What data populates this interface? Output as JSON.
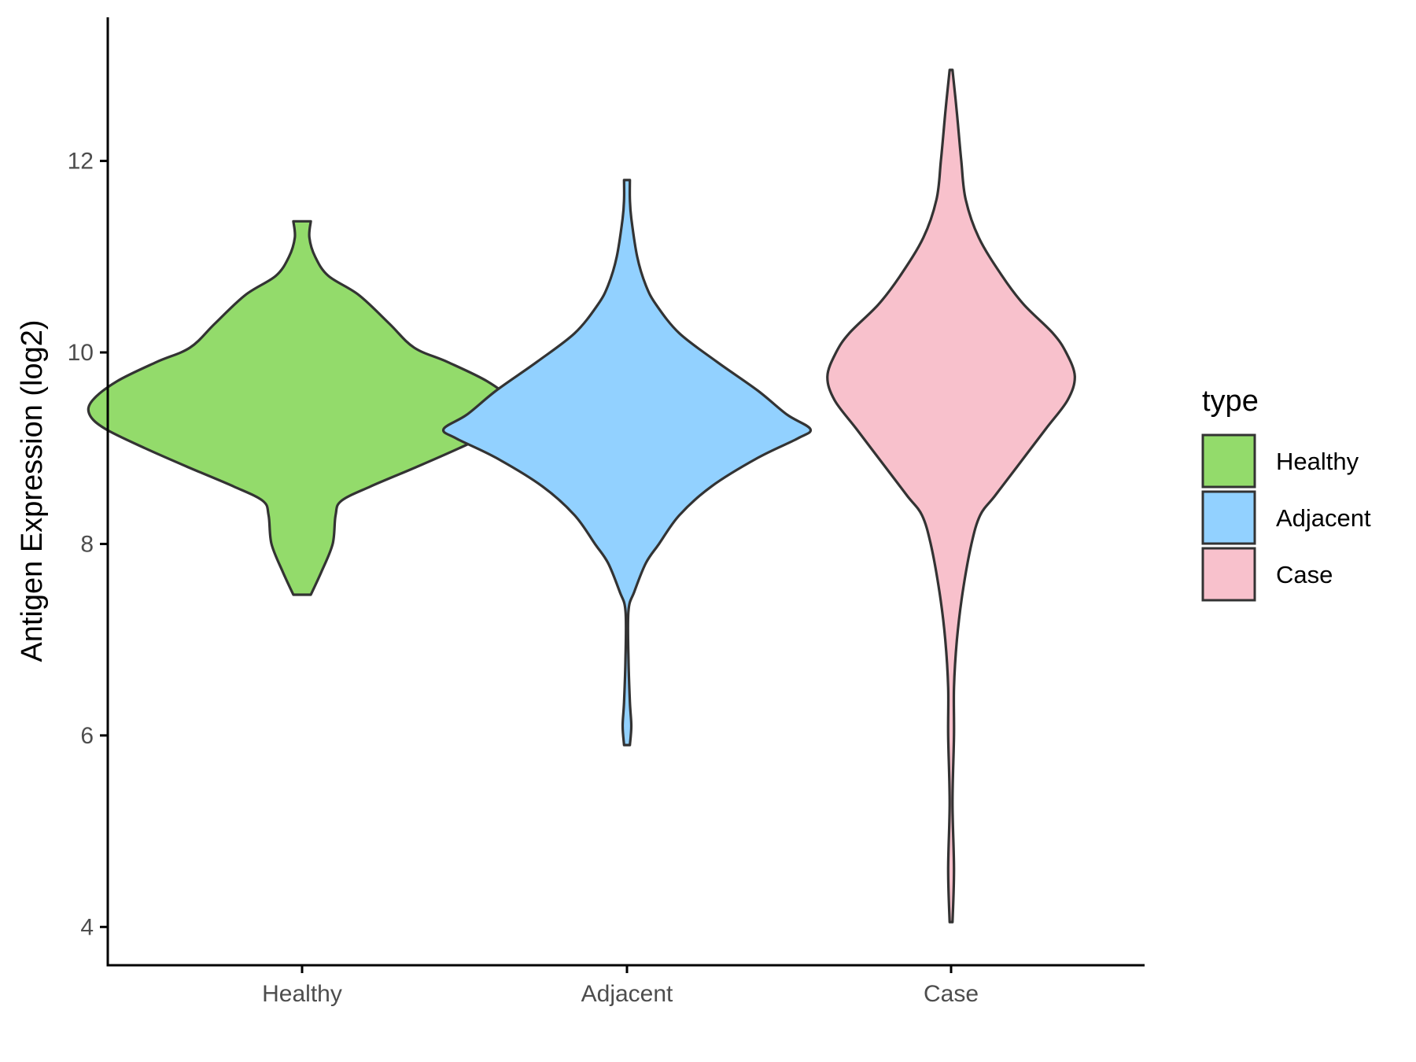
{
  "chart_data": {
    "type": "violin",
    "title": "",
    "xlabel": "",
    "ylabel": "Antigen Expression (log2)",
    "ylim": [
      3.6,
      13.5
    ],
    "yticks": [
      4,
      6,
      8,
      10,
      12
    ],
    "categories": [
      "Healthy",
      "Adjacent",
      "Case"
    ],
    "series": [
      {
        "name": "Healthy",
        "color": "#93DB6B",
        "min": 7.47,
        "max": 11.37,
        "profile": [
          [
            7.47,
            0.06
          ],
          [
            7.7,
            0.13
          ],
          [
            8.0,
            0.21
          ],
          [
            8.3,
            0.23
          ],
          [
            8.45,
            0.27
          ],
          [
            8.6,
            0.47
          ],
          [
            8.8,
            0.78
          ],
          [
            9.0,
            1.08
          ],
          [
            9.2,
            1.35
          ],
          [
            9.35,
            1.46
          ],
          [
            9.5,
            1.44
          ],
          [
            9.7,
            1.27
          ],
          [
            9.9,
            1.0
          ],
          [
            10.05,
            0.77
          ],
          [
            10.3,
            0.6
          ],
          [
            10.6,
            0.39
          ],
          [
            10.8,
            0.18
          ],
          [
            11.0,
            0.09
          ],
          [
            11.2,
            0.05
          ],
          [
            11.37,
            0.06
          ]
        ]
      },
      {
        "name": "Adjacent",
        "color": "#92D1FF",
        "min": 5.9,
        "max": 11.8,
        "profile": [
          [
            5.9,
            0.02
          ],
          [
            6.1,
            0.03
          ],
          [
            6.35,
            0.02
          ],
          [
            6.8,
            0.01
          ],
          [
            7.3,
            0.01
          ],
          [
            7.5,
            0.05
          ],
          [
            7.8,
            0.13
          ],
          [
            8.0,
            0.22
          ],
          [
            8.3,
            0.36
          ],
          [
            8.6,
            0.58
          ],
          [
            8.9,
            0.9
          ],
          [
            9.1,
            1.17
          ],
          [
            9.2,
            1.26
          ],
          [
            9.35,
            1.1
          ],
          [
            9.6,
            0.9
          ],
          [
            9.9,
            0.62
          ],
          [
            10.2,
            0.36
          ],
          [
            10.5,
            0.2
          ],
          [
            10.7,
            0.13
          ],
          [
            11.0,
            0.07
          ],
          [
            11.4,
            0.03
          ],
          [
            11.6,
            0.02
          ],
          [
            11.8,
            0.02
          ]
        ]
      },
      {
        "name": "Case",
        "color": "#F8C1CC",
        "min": 4.05,
        "max": 12.95,
        "profile": [
          [
            4.05,
            0.01
          ],
          [
            4.6,
            0.02
          ],
          [
            5.3,
            0.01
          ],
          [
            6.0,
            0.02
          ],
          [
            6.5,
            0.02
          ],
          [
            7.0,
            0.04
          ],
          [
            7.5,
            0.08
          ],
          [
            8.0,
            0.14
          ],
          [
            8.3,
            0.2
          ],
          [
            8.5,
            0.3
          ],
          [
            8.8,
            0.45
          ],
          [
            9.2,
            0.65
          ],
          [
            9.5,
            0.8
          ],
          [
            9.75,
            0.85
          ],
          [
            10.0,
            0.79
          ],
          [
            10.2,
            0.7
          ],
          [
            10.5,
            0.5
          ],
          [
            10.8,
            0.35
          ],
          [
            11.2,
            0.19
          ],
          [
            11.6,
            0.1
          ],
          [
            12.0,
            0.07
          ],
          [
            12.5,
            0.04
          ],
          [
            12.95,
            0.01
          ]
        ]
      }
    ],
    "legend": {
      "title": "type",
      "position": "right",
      "entries": [
        "Healthy",
        "Adjacent",
        "Case"
      ]
    },
    "grid": false
  }
}
